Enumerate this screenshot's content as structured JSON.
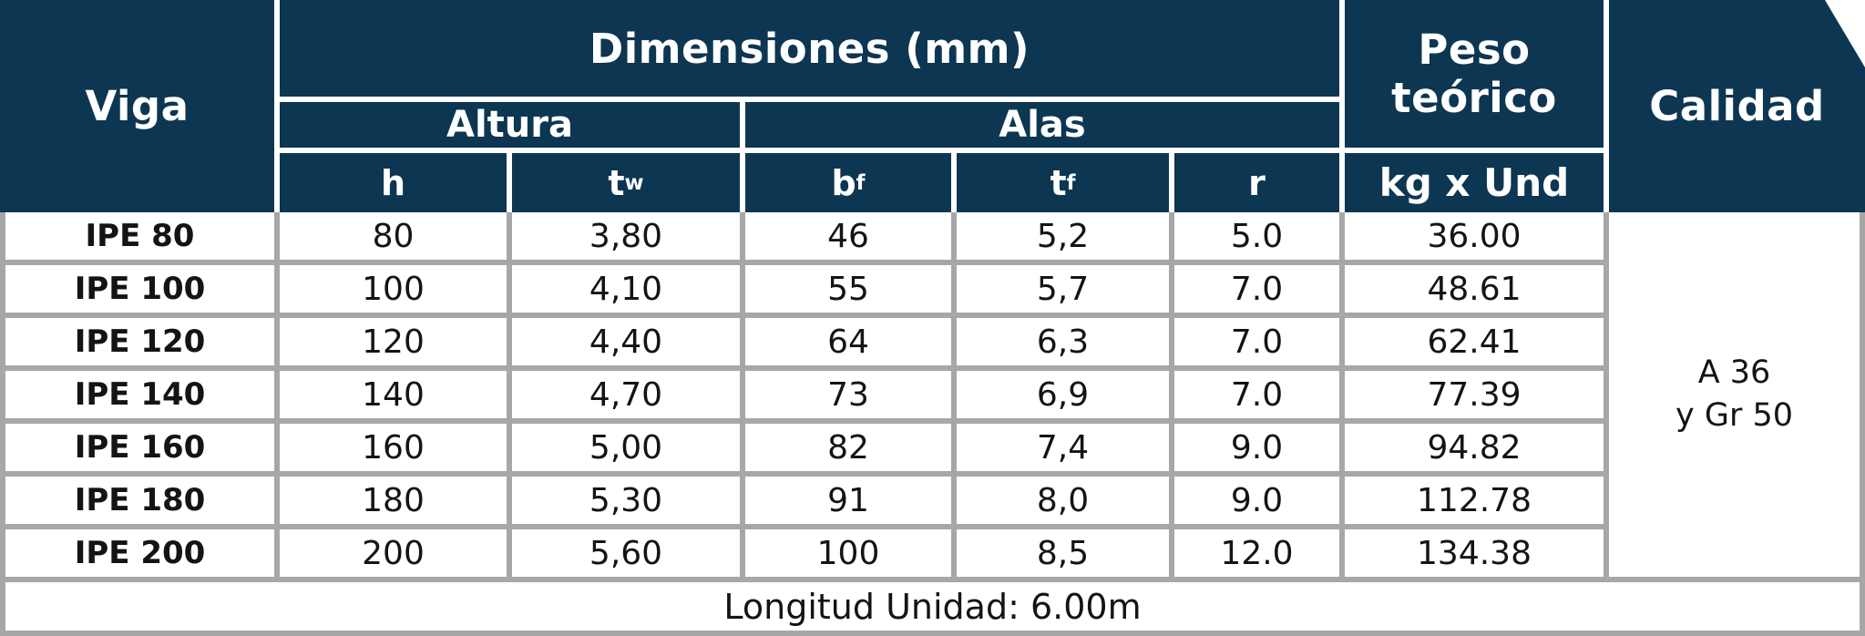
{
  "colors": {
    "navy": "#0d3652",
    "border_gray": "#a7a7a7",
    "header_text": "#ffffff",
    "body_text": "#141414"
  },
  "header": {
    "viga": "Viga",
    "dimensiones": "Dimensiones (mm)",
    "altura": "Altura",
    "alas": "Alas",
    "peso": "Peso teórico",
    "peso_unit": "kg x Und",
    "calidad": "Calidad",
    "col_h": "h",
    "col_tw_base": "t",
    "col_tw_sub": "w",
    "col_bf_base": "b",
    "col_bf_sub": "f",
    "col_tf_base": "t",
    "col_tf_sub": "f",
    "col_r": "r"
  },
  "calidad_value": {
    "line1": "A 36",
    "line2": "y Gr 50"
  },
  "footer": {
    "text": "Longitud Unidad: 6.00m"
  },
  "chart_data": {
    "type": "table",
    "title": "Dimensiones (mm) de vigas IPE",
    "column_groups": [
      {
        "label": "Dimensiones (mm)",
        "subgroups": [
          {
            "label": "Altura",
            "columns": [
              "h",
              "tw"
            ]
          },
          {
            "label": "Alas",
            "columns": [
              "bf",
              "tf",
              "r"
            ]
          }
        ]
      },
      {
        "label": "Peso teórico",
        "columns": [
          "kg x Und"
        ]
      },
      {
        "label": "Calidad",
        "columns": []
      }
    ],
    "columns": [
      "Viga",
      "h",
      "tw",
      "bf",
      "tf",
      "r",
      "kg x Und"
    ],
    "rows": [
      [
        "IPE 80",
        "80",
        "3,80",
        "46",
        "5,2",
        "5.0",
        "36.00"
      ],
      [
        "IPE 100",
        "100",
        "4,10",
        "55",
        "5,7",
        "7.0",
        "48.61"
      ],
      [
        "IPE 120",
        "120",
        "4,40",
        "64",
        "6,3",
        "7.0",
        "62.41"
      ],
      [
        "IPE 140",
        "140",
        "4,70",
        "73",
        "6,9",
        "7.0",
        "77.39"
      ],
      [
        "IPE 160",
        "160",
        "5,00",
        "82",
        "7,4",
        "9.0",
        "94.82"
      ],
      [
        "IPE 180",
        "180",
        "5,30",
        "91",
        "8,0",
        "9.0",
        "112.78"
      ],
      [
        "IPE 200",
        "200",
        "5,60",
        "100",
        "8,5",
        "12.0",
        "134.38"
      ]
    ],
    "calidad_value": "A 36 y Gr 50",
    "footer_note": "Longitud Unidad: 6.00m"
  }
}
